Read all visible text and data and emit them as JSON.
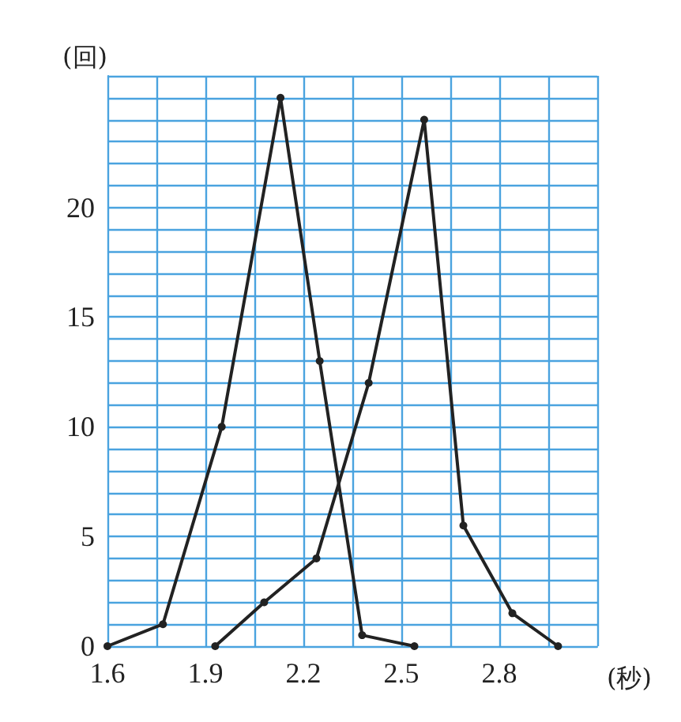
{
  "chart_data": {
    "type": "line",
    "xlabel": "(秒)",
    "ylabel": "(回)",
    "xlim": [
      1.6,
      3.1
    ],
    "ylim": [
      0,
      26
    ],
    "xticks": [
      1.6,
      1.9,
      2.2,
      2.5,
      2.8
    ],
    "yticks": [
      0,
      5,
      10,
      15,
      20
    ],
    "grid": true,
    "marker": "circle",
    "line_style": "solid",
    "series": [
      {
        "color": "#222222",
        "x": [
          1.6,
          1.77,
          1.95,
          2.13,
          2.25,
          2.38,
          2.54
        ],
        "values": [
          0,
          1,
          10,
          25,
          13,
          0.5,
          0
        ]
      },
      {
        "color": "#222222",
        "x": [
          1.93,
          2.08,
          2.24,
          2.4,
          2.57,
          2.69,
          2.84,
          2.98
        ],
        "values": [
          0,
          2,
          4,
          12,
          24,
          5.5,
          1.5,
          0
        ]
      }
    ]
  }
}
